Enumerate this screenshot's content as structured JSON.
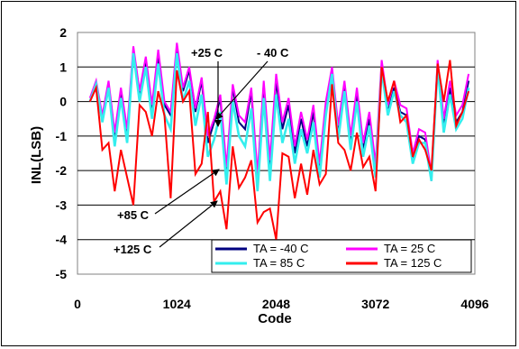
{
  "chart_data": {
    "type": "line",
    "title": "",
    "xlabel": "Code",
    "ylabel": "INL(LSB)",
    "xlim": [
      0,
      4096
    ],
    "ylim": [
      -5,
      2
    ],
    "x_ticks": [
      "0",
      "1024",
      "2048",
      "3072",
      "4096"
    ],
    "y_ticks": [
      "2",
      "1",
      "0",
      "-1",
      "-2",
      "-3",
      "-4",
      "-5"
    ],
    "grid": "horizontal",
    "legend_position": "bottom-right",
    "x": [
      128,
      192,
      256,
      320,
      384,
      448,
      512,
      576,
      640,
      704,
      768,
      832,
      896,
      960,
      1024,
      1088,
      1152,
      1216,
      1280,
      1344,
      1408,
      1472,
      1536,
      1600,
      1664,
      1728,
      1792,
      1856,
      1920,
      1984,
      2048,
      2112,
      2176,
      2240,
      2304,
      2368,
      2432,
      2496,
      2560,
      2624,
      2688,
      2752,
      2816,
      2880,
      2944,
      3008,
      3072,
      3136,
      3200,
      3264,
      3328,
      3392,
      3456,
      3520,
      3584,
      3648,
      3712,
      3776,
      3840,
      3904,
      3968,
      4032
    ],
    "series": [
      {
        "name": "TA = -40 C",
        "color": "#000080",
        "values": [
          0.0,
          0.5,
          -0.5,
          0.5,
          -1.0,
          0.3,
          -0.9,
          1.4,
          0.2,
          1.2,
          -0.2,
          1.3,
          -0.1,
          -0.4,
          1.6,
          0.3,
          0.9,
          -0.3,
          0.6,
          -1.2,
          -0.6,
          0.1,
          -2.1,
          0.4,
          -0.6,
          -0.8,
          0.3,
          -2.3,
          0.5,
          -1.9,
          0.6,
          -0.8,
          -0.1,
          -1.5,
          -0.5,
          -1.3,
          -0.3,
          -2.0,
          -0.2,
          0.9,
          -0.9,
          0.4,
          -1.2,
          0.2,
          -1.4,
          -0.5,
          -2.0,
          1.0,
          -0.3,
          0.4,
          -0.3,
          -0.4,
          -1.7,
          -1.0,
          -1.1,
          -2.3,
          1.1,
          -0.7,
          0.4,
          -0.6,
          -0.3,
          0.6
        ]
      },
      {
        "name": "TA = 25 C",
        "color": "#ff00ff",
        "values": [
          0.1,
          0.6,
          -0.4,
          0.6,
          -0.9,
          0.4,
          -0.8,
          1.6,
          0.3,
          1.3,
          -0.1,
          1.5,
          0.0,
          -0.3,
          1.7,
          0.4,
          1.0,
          -0.2,
          0.7,
          -1.0,
          -0.5,
          0.2,
          -1.9,
          0.5,
          -0.4,
          -0.6,
          0.4,
          -2.1,
          0.6,
          -1.7,
          0.8,
          -0.6,
          0.1,
          -1.3,
          -0.3,
          -1.1,
          -0.1,
          -1.8,
          0.0,
          1.0,
          -0.7,
          0.6,
          -1.0,
          0.4,
          -1.2,
          -0.3,
          -1.8,
          1.2,
          -0.1,
          0.6,
          -0.1,
          -0.2,
          -1.5,
          -0.8,
          -0.9,
          -2.1,
          1.2,
          -0.5,
          0.6,
          -0.4,
          -0.1,
          0.8
        ]
      },
      {
        "name": "TA = 85 C",
        "color": "#33eeee",
        "values": [
          0.0,
          0.5,
          -0.6,
          0.4,
          -1.3,
          0.1,
          -1.2,
          1.4,
          0.0,
          1.0,
          -0.5,
          1.1,
          -0.4,
          -0.8,
          1.4,
          0.0,
          0.6,
          -0.7,
          0.2,
          -1.6,
          -1.1,
          -0.3,
          -2.4,
          0.0,
          -1.0,
          -1.3,
          -0.2,
          -2.6,
          0.1,
          -2.3,
          0.2,
          -1.2,
          -0.5,
          -1.8,
          -0.8,
          -1.5,
          -0.6,
          -2.2,
          -0.4,
          0.8,
          -1.1,
          0.3,
          -1.4,
          0.0,
          -1.6,
          -0.7,
          -2.2,
          0.9,
          -0.4,
          0.3,
          -0.4,
          -0.6,
          -1.8,
          -1.2,
          -1.2,
          -2.3,
          1.0,
          -0.9,
          0.2,
          -0.8,
          -0.5,
          0.4
        ]
      },
      {
        "name": "TA = 125 C",
        "color": "#ff0000",
        "values": [
          0.0,
          0.4,
          -1.4,
          -1.2,
          -2.6,
          -1.4,
          -2.2,
          -3.0,
          -0.1,
          -0.3,
          -1.0,
          0.3,
          -0.4,
          -2.8,
          0.9,
          0.0,
          0.3,
          -2.1,
          -1.8,
          -0.3,
          -2.9,
          -2.6,
          -3.7,
          -1.3,
          -2.5,
          -2.2,
          -1.7,
          -3.5,
          -3.2,
          -3.1,
          -4.0,
          -1.5,
          -1.6,
          -2.8,
          -1.8,
          -2.7,
          -1.4,
          -2.4,
          -2.1,
          0.5,
          -1.2,
          -1.4,
          -2.0,
          -0.9,
          -1.9,
          -1.6,
          -2.6,
          1.0,
          0.0,
          0.6,
          -0.6,
          -0.4,
          -1.6,
          -1.1,
          -1.4,
          -2.0,
          1.1,
          0.0,
          1.2,
          -0.7,
          -0.3,
          0.3
        ]
      }
    ],
    "annotations": [
      "+25 C",
      "- 40 C",
      "+85 C",
      "+125 C"
    ]
  }
}
